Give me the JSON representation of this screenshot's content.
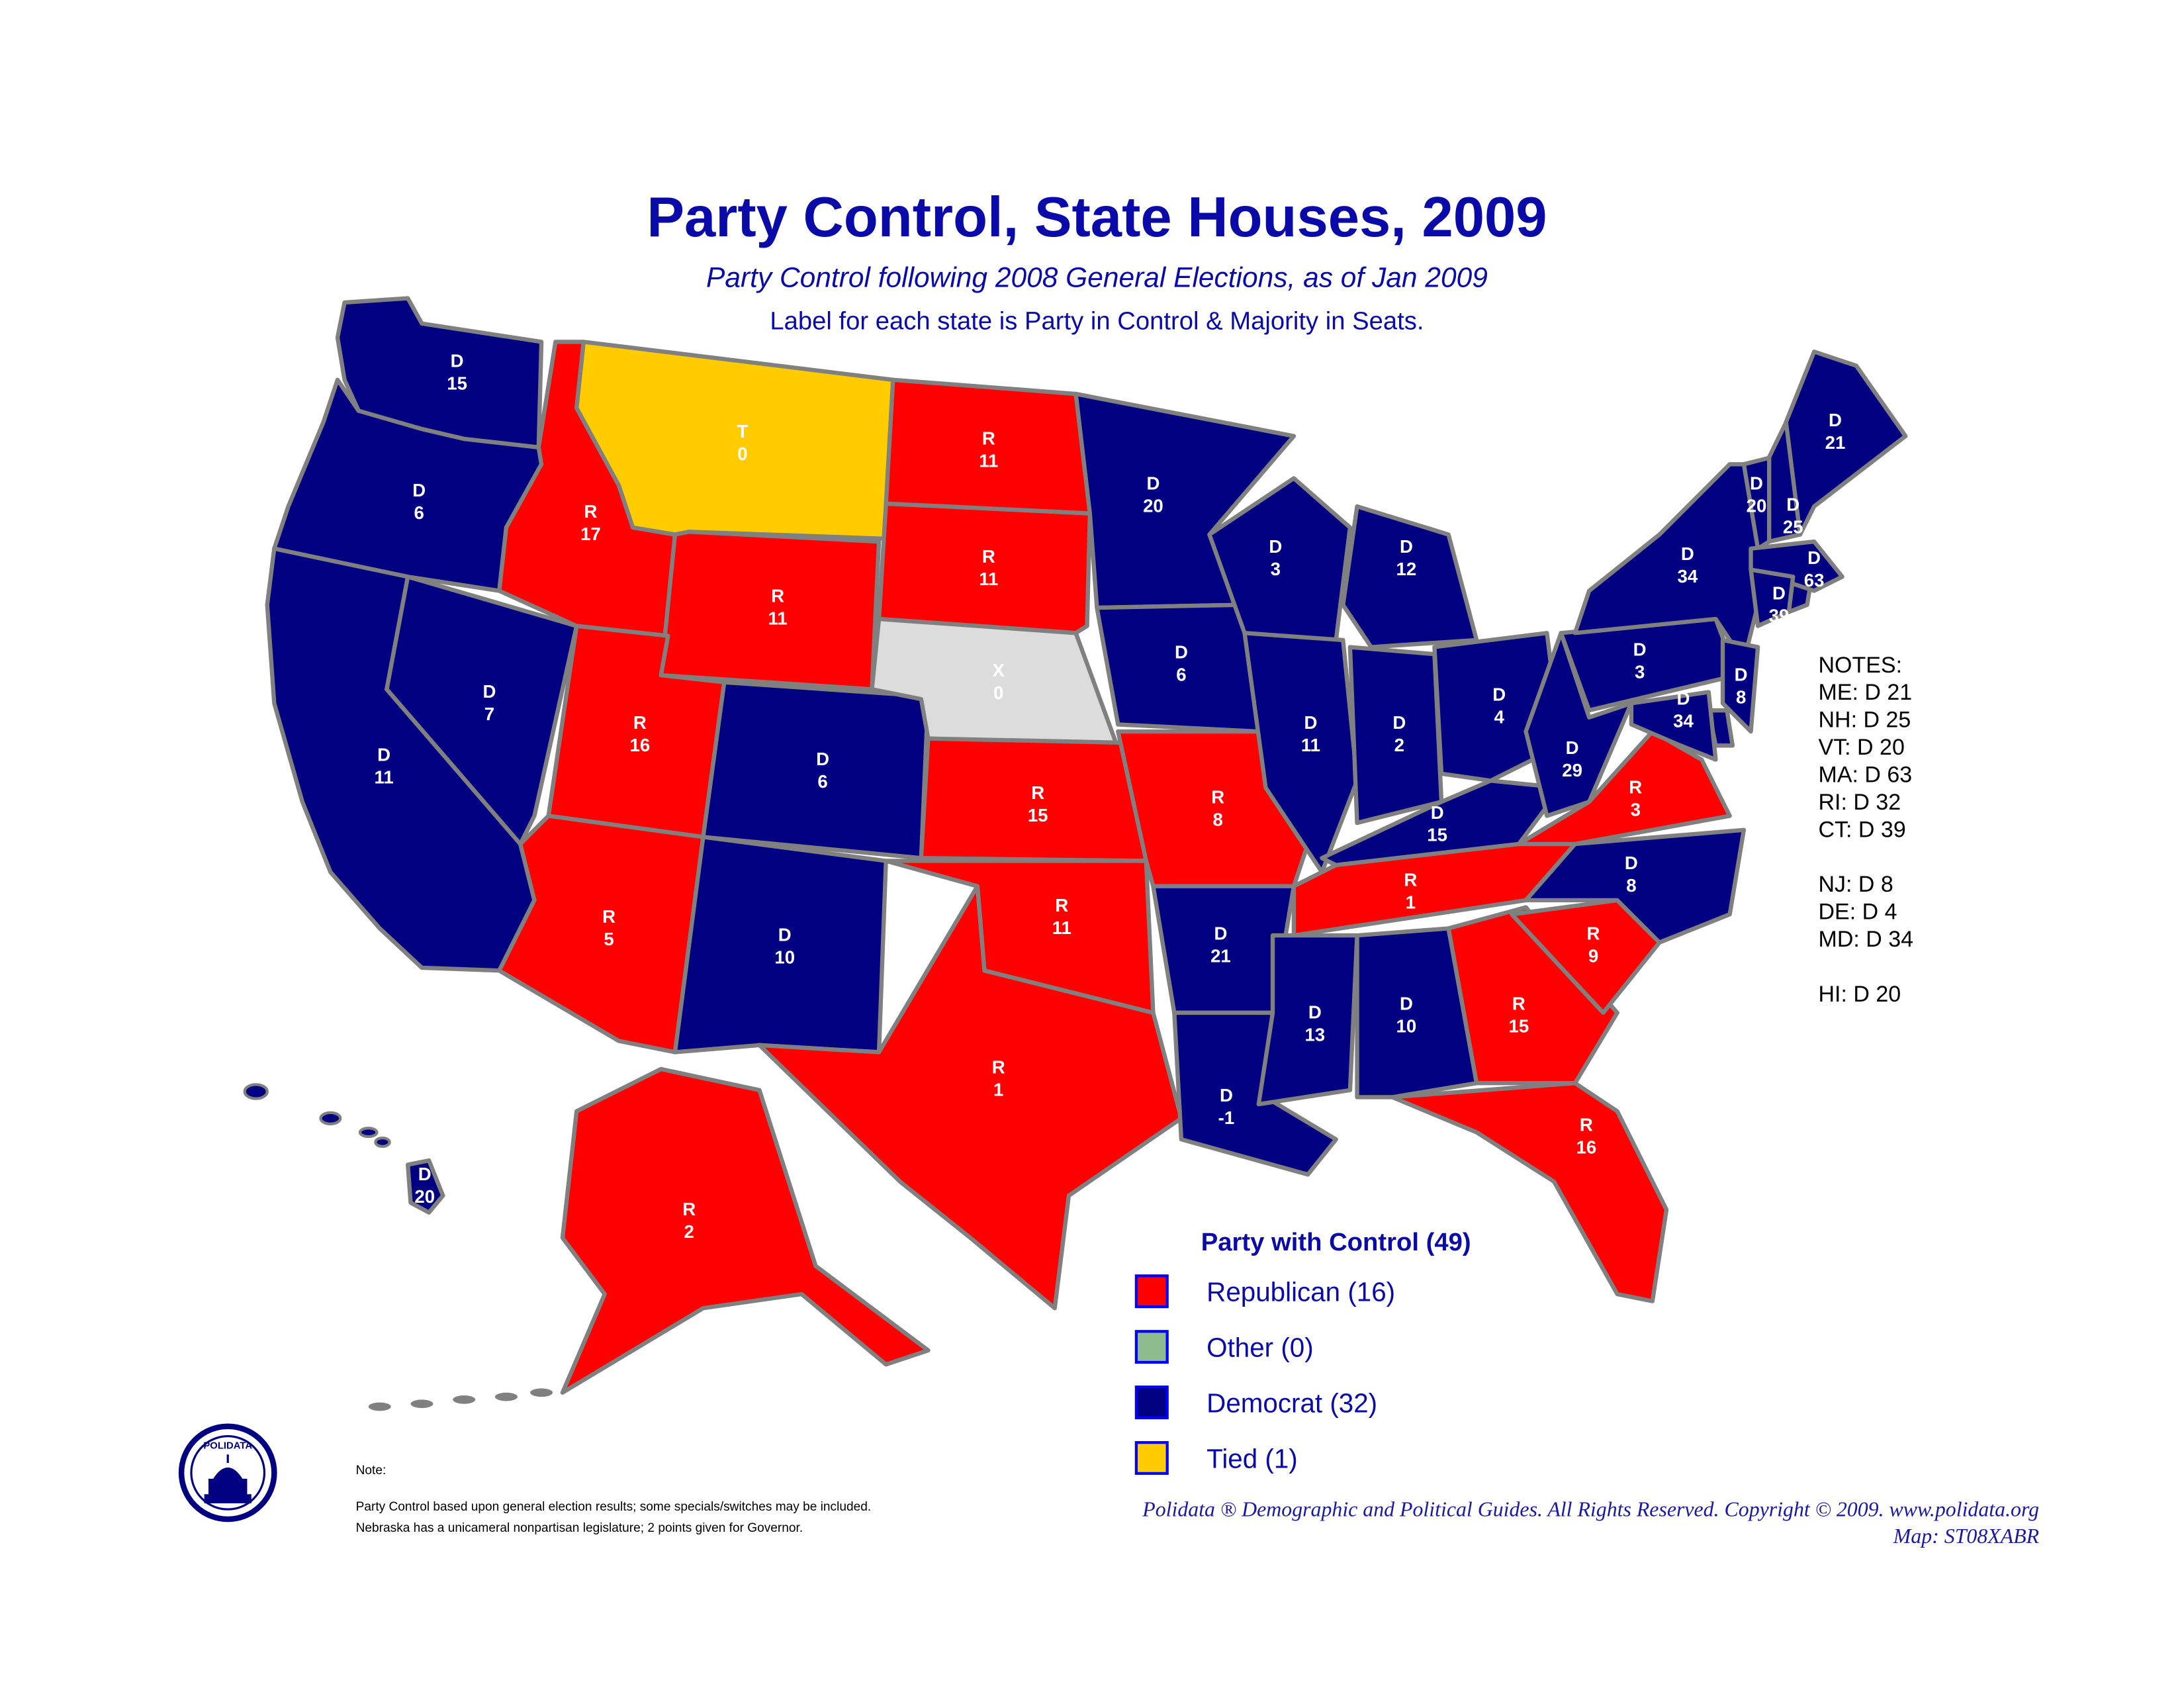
{
  "header": {
    "title": "Party Control, State Houses, 2009",
    "subtitle": "Party Control following 2008 General Elections, as of Jan 2009",
    "description": "Label for each state is Party in Control & Majority in Seats."
  },
  "states": [
    {
      "party": "D",
      "majority": 15,
      "color": "#000080"
    },
    {
      "party": "D",
      "majority": 6,
      "color": "#000080"
    },
    {
      "party": "D",
      "majority": 11,
      "color": "#000080"
    },
    {
      "party": "D",
      "majority": 7,
      "color": "#000080"
    },
    {
      "party": "R",
      "majority": 17,
      "color": "#ff0000"
    },
    {
      "party": "T",
      "majority": 0,
      "color": "#ffcc00"
    },
    {
      "party": "R",
      "majority": 11,
      "color": "#ff0000"
    },
    {
      "party": "R",
      "majority": 16,
      "color": "#ff0000"
    },
    {
      "party": "D",
      "majority": 6,
      "color": "#000080"
    },
    {
      "party": "R",
      "majority": 5,
      "color": "#ff0000"
    },
    {
      "party": "D",
      "majority": 10,
      "color": "#000080"
    },
    {
      "party": "R",
      "majority": 11,
      "color": "#ff0000"
    },
    {
      "party": "R",
      "majority": 11,
      "color": "#ff0000"
    },
    {
      "party": "X",
      "majority": 0,
      "color": "#dcdcdc"
    },
    {
      "party": "R",
      "majority": 15,
      "color": "#ff0000"
    },
    {
      "party": "R",
      "majority": 11,
      "color": "#ff0000"
    },
    {
      "party": "R",
      "majority": 1,
      "color": "#ff0000"
    },
    {
      "party": "D",
      "majority": 20,
      "color": "#000080"
    },
    {
      "party": "D",
      "majority": 6,
      "color": "#000080"
    },
    {
      "party": "R",
      "majority": 8,
      "color": "#ff0000"
    },
    {
      "party": "D",
      "majority": 21,
      "color": "#000080"
    },
    {
      "party": "D",
      "majority": -1,
      "color": "#000080"
    },
    {
      "party": "D",
      "majority": 3,
      "color": "#000080"
    },
    {
      "party": "D",
      "majority": 11,
      "color": "#000080"
    },
    {
      "party": "D",
      "majority": 12,
      "color": "#000080"
    },
    {
      "party": "D",
      "majority": 2,
      "color": "#000080"
    },
    {
      "party": "D",
      "majority": 4,
      "color": "#000080"
    },
    {
      "party": "D",
      "majority": 15,
      "color": "#000080"
    },
    {
      "party": "R",
      "majority": 1,
      "color": "#ff0000"
    },
    {
      "party": "D",
      "majority": 13,
      "color": "#000080"
    },
    {
      "party": "D",
      "majority": 10,
      "color": "#000080"
    },
    {
      "party": "R",
      "majority": 15,
      "color": "#ff0000"
    },
    {
      "party": "R",
      "majority": 16,
      "color": "#ff0000"
    },
    {
      "party": "R",
      "majority": 9,
      "color": "#ff0000"
    },
    {
      "party": "D",
      "majority": 8,
      "color": "#000080"
    },
    {
      "party": "R",
      "majority": 3,
      "color": "#ff0000"
    },
    {
      "party": "D",
      "majority": 29,
      "color": "#000080"
    },
    {
      "party": "D",
      "majority": 3,
      "color": "#000080"
    },
    {
      "party": "D",
      "majority": 34,
      "color": "#000080"
    },
    {
      "party": "D",
      "majority": 20,
      "color": "#000080"
    },
    {
      "party": "D",
      "majority": 25,
      "color": "#000080"
    },
    {
      "party": "D",
      "majority": 21,
      "color": "#000080"
    },
    {
      "party": "D",
      "majority": 63,
      "color": "#000080"
    },
    {
      "party": "D",
      "majority": 39,
      "color": "#000080"
    },
    {
      "party": "D",
      "majority": 8,
      "color": "#000080"
    },
    {
      "party": "D",
      "majority": 34,
      "color": "#000080"
    },
    {
      "party": "R",
      "majority": 2,
      "color": "#ff0000"
    },
    {
      "party": "D",
      "majority": 20,
      "color": "#000080"
    }
  ],
  "notes": {
    "heading": "NOTES:",
    "groups": [
      [
        "ME: D  21",
        "NH: D 25",
        "VT: D  20",
        "MA: D 63",
        "RI: D 32",
        "CT: D 39"
      ],
      [
        "NJ: D 8",
        "DE: D  4",
        "MD: D 34"
      ],
      [
        "HI: D  20"
      ]
    ]
  },
  "legend": {
    "title": "Party with Control (49)",
    "items": [
      {
        "label": "Republican (16)",
        "color": "#ff0000"
      },
      {
        "label": "Other (0)",
        "color": "#8fbc8f"
      },
      {
        "label": "Democrat (32)",
        "color": "#000080"
      },
      {
        "label": "Tied (1)",
        "color": "#ffcc00"
      }
    ]
  },
  "footnote": {
    "heading": "Note:",
    "lines": [
      "Party Control based upon general election results; some specials/switches may be included.",
      "Nebraska has a unicameral nonpartisan legislature;  2 points given for Governor."
    ]
  },
  "logo": "POLIDATA",
  "credits": [
    "Polidata ®  Demographic and Political Guides. All Rights Reserved. Copyright © 2009. www.polidata.org",
    "Map: ST08XABR"
  ]
}
